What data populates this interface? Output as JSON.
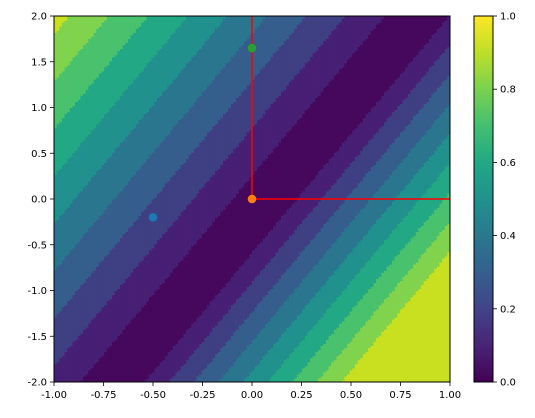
{
  "chart_data": [
    {
      "type": "heatmap",
      "subtype": "filled-contour",
      "title": "",
      "xlabel": "",
      "ylabel": "",
      "xlim": [
        -1.0,
        1.0
      ],
      "ylim": [
        -2.0,
        2.0
      ],
      "x_ticks": [
        "-1.00",
        "-0.75",
        "-0.50",
        "-0.25",
        "0.00",
        "0.25",
        "0.50",
        "0.75",
        "1.00"
      ],
      "y_ticks": [
        "-2.0",
        "-1.5",
        "-1.0",
        "-0.5",
        "0.0",
        "0.5",
        "1.0",
        "1.5",
        "2.0"
      ],
      "colormap": "viridis",
      "contour_levels": [
        0.0,
        0.1,
        0.2,
        0.3,
        0.4,
        0.5,
        0.6,
        0.7,
        0.8,
        0.9,
        1.0
      ],
      "level_colors": [
        "#46085c",
        "#471f74",
        "#3f3f83",
        "#355e8d",
        "#2a768e",
        "#20918c",
        "#22a884",
        "#49c16d",
        "#81d34d",
        "#c8e020"
      ],
      "field": "value falls to 0 along the band through (-0.40, -1.30) with slope ≈ 2.6 and rises linearly away from it; values above 0.5 only on the right side (max ≈ 1.0 at bottom-right)",
      "points": [
        {
          "x": -0.5,
          "y": -0.2,
          "color": "#1f77b4"
        },
        {
          "x": 0.0,
          "y": 0.0,
          "color": "#ff7f0e"
        },
        {
          "x": 0.0,
          "y": 1.65,
          "color": "#2ca02c"
        }
      ],
      "lines": [
        {
          "points": [
            [
              0.0,
              0.0
            ],
            [
              1.0,
              0.0
            ]
          ],
          "color": "#ff0000"
        },
        {
          "points": [
            [
              0.0,
              0.0
            ],
            [
              0.0,
              2.0
            ]
          ],
          "color": "#ff0000"
        }
      ],
      "grid": false
    },
    {
      "type": "colorbar",
      "range": [
        0.0,
        1.0
      ],
      "ticks": [
        "0.0",
        "0.2",
        "0.4",
        "0.6",
        "0.8",
        "1.0"
      ],
      "colormap": "viridis"
    }
  ]
}
